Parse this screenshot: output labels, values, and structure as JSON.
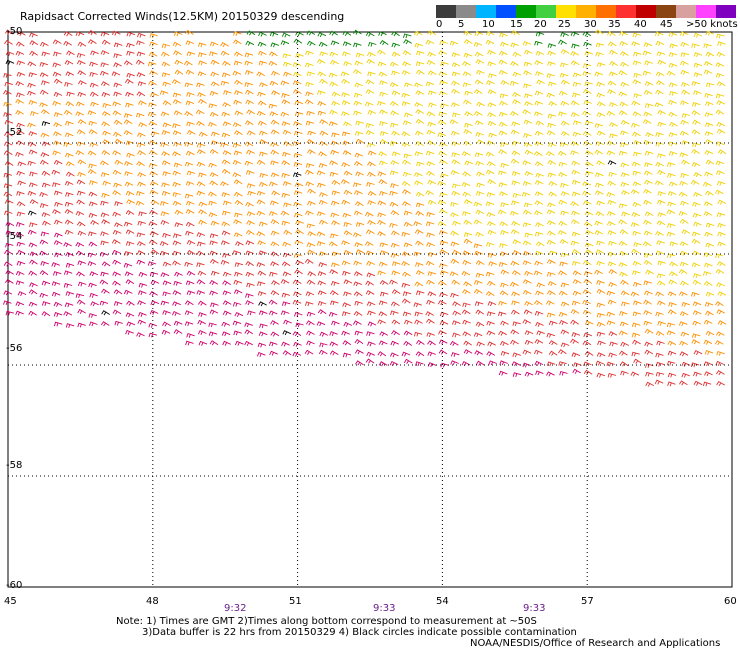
{
  "title": "Rapidsact Corrected Winds(12.5KM) 20150329 descending",
  "legend": {
    "colors": [
      "#3c3c3c",
      "#8a8a8a",
      "#00b4ff",
      "#0050ff",
      "#00a000",
      "#40d040",
      "#ffe000",
      "#ffb000",
      "#ff7000",
      "#ff3030",
      "#c00000",
      "#8b4513",
      "#d9a0a0",
      "#ff40ff",
      "#8000c0"
    ],
    "labels": [
      "0",
      "5",
      "10",
      "15",
      "20",
      "25",
      "30",
      "35",
      "40",
      "45",
      ">50 knots"
    ]
  },
  "axes": {
    "x_ticks": [
      "45",
      "48",
      "51",
      "54",
      "57",
      "60"
    ],
    "y_ticks": [
      "-50",
      "-52",
      "-54",
      "-56",
      "-58",
      "-60"
    ]
  },
  "times": [
    "9:32",
    "9:33",
    "9:33"
  ],
  "notes": {
    "line1": "Note: 1) Times are GMT 2)Times along bottom correspond to measurement at ~50S",
    "line2": "3)Data buffer is 22 hrs from 20150329 4) Black circles indicate possible contamination",
    "line3": "NOAA/NESDIS/Office of Research and Applications"
  },
  "map": {
    "lon_range": [
      45,
      60
    ],
    "lat_range": [
      -60,
      -50
    ],
    "swath_bottom_edge": [
      [
        45,
        -55.2
      ],
      [
        51,
        -55.95
      ],
      [
        54,
        -56.15
      ],
      [
        60,
        -56.5
      ]
    ],
    "barb_colors": {
      "yellow": "#f0d000",
      "orange": "#ff9000",
      "red": "#e03030",
      "magenta": "#d0006a",
      "green": "#008000",
      "black": "#000000",
      "blue": "#2040ff"
    }
  }
}
